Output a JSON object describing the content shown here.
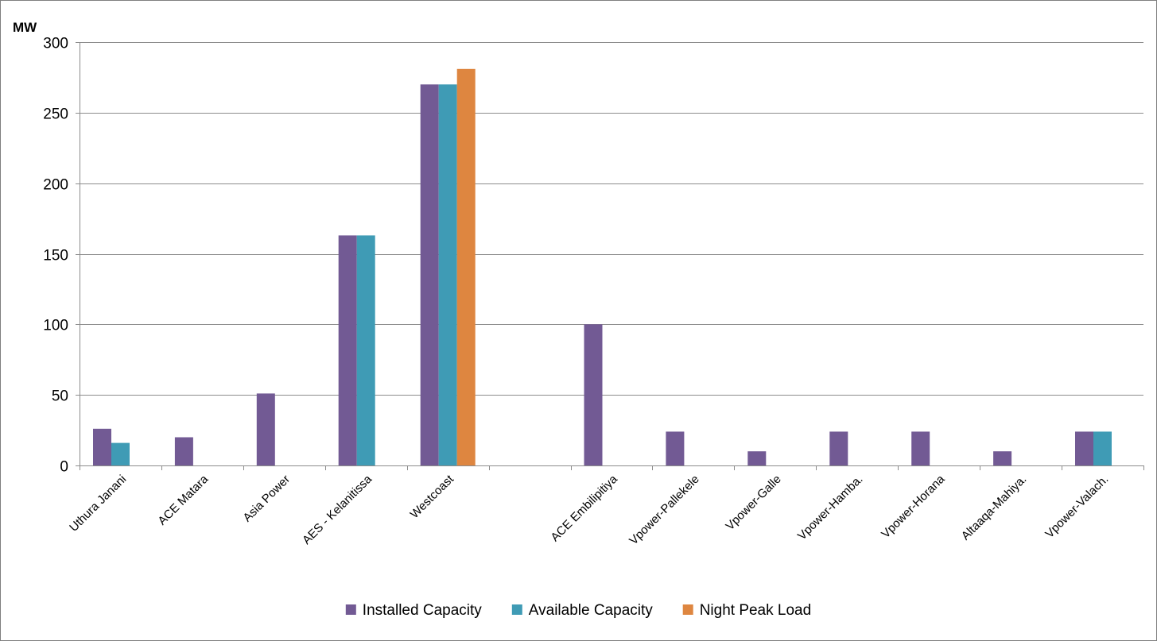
{
  "chart_data": {
    "type": "bar",
    "ylabel": "MW",
    "ylim": [
      0,
      300
    ],
    "yticks": [
      0,
      50,
      100,
      150,
      200,
      250,
      300
    ],
    "grid": true,
    "legend_position": "bottom",
    "categories": [
      "Uthura Janani",
      "ACE Matara",
      "Asia Power",
      "AES - Kelanitissa",
      "Westcoast",
      "",
      "ACE Embilipitiya",
      "Vpower-Pallekele",
      "Vpower-Galle",
      "Vpower-Hamba.",
      "Vpower-Horana",
      "Altaaqa-Mahiya.",
      "Vpower-Valach."
    ],
    "series": [
      {
        "name": "Installed Capacity",
        "color": "#725a94",
        "values": [
          26,
          20,
          51,
          163,
          270,
          null,
          100,
          24,
          10,
          24,
          24,
          10,
          24
        ]
      },
      {
        "name": "Available Capacity",
        "color": "#3f9bb5",
        "values": [
          16,
          null,
          null,
          163,
          270,
          null,
          null,
          null,
          null,
          null,
          null,
          null,
          24
        ]
      },
      {
        "name": "Night Peak Load",
        "color": "#de8640",
        "values": [
          null,
          null,
          null,
          null,
          281,
          null,
          null,
          null,
          null,
          null,
          null,
          null,
          null
        ]
      }
    ]
  }
}
